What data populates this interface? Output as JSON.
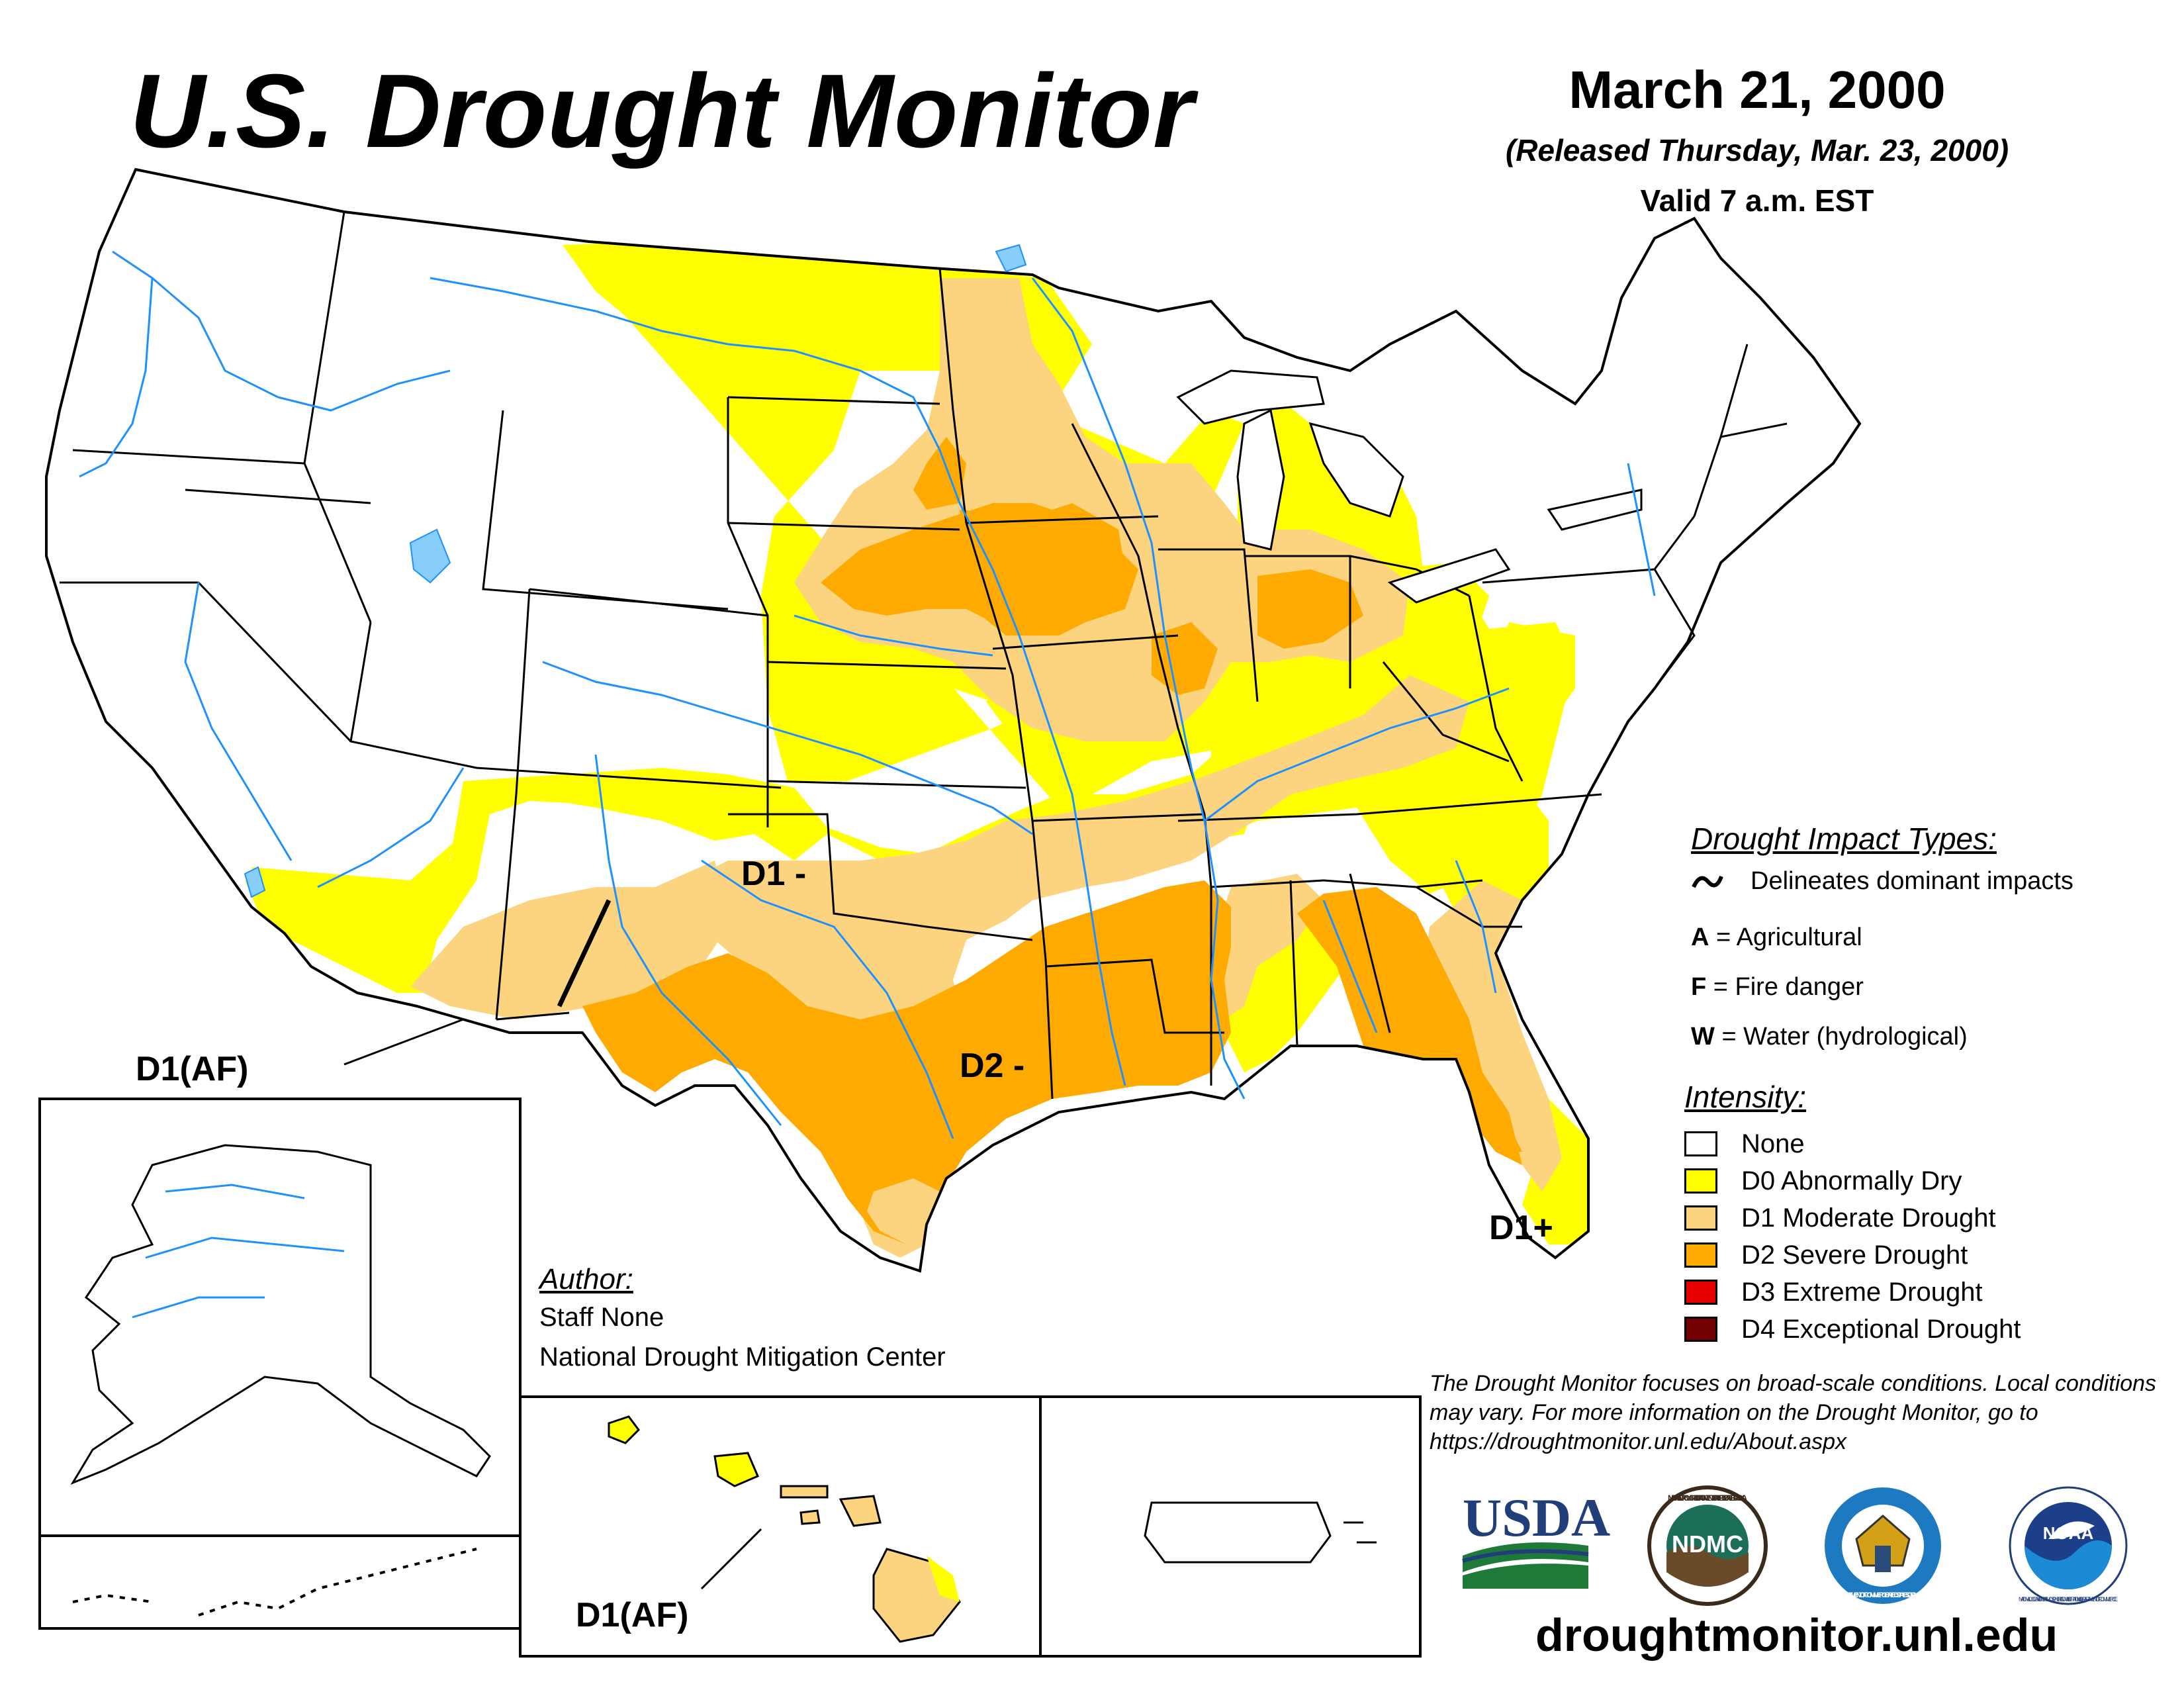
{
  "header": {
    "title": "U.S. Drought Monitor",
    "date": "March 21, 2000",
    "released": "(Released Thursday, Mar. 23, 2000)",
    "valid": "Valid 7 a.m. EST"
  },
  "map_labels": {
    "southwest": "D1(AF)",
    "hawaii": "D1(AF)",
    "oklahoma": "D1 -",
    "texas": "D2 -",
    "florida": "D1+"
  },
  "impact_types": {
    "heading": "Drought Impact Types:",
    "delineates": "Delineates dominant impacts",
    "items": [
      {
        "key": "A",
        "label": "= Agricultural"
      },
      {
        "key": "F",
        "label": "= Fire danger"
      },
      {
        "key": "W",
        "label": "= Water (hydrological)"
      }
    ]
  },
  "intensity": {
    "heading": "Intensity:",
    "items": [
      {
        "label": "None",
        "color": "#ffffff"
      },
      {
        "label": "D0 Abnormally Dry",
        "color": "#ffff00"
      },
      {
        "label": "D1 Moderate Drought",
        "color": "#fcd37f"
      },
      {
        "label": "D2 Severe Drought",
        "color": "#ffaa00"
      },
      {
        "label": "D3 Extreme Drought",
        "color": "#e60000"
      },
      {
        "label": "D4 Exceptional Drought",
        "color": "#730000"
      }
    ]
  },
  "author": {
    "heading": "Author:",
    "name": "Staff None",
    "org": "National Drought Mitigation Center"
  },
  "disclaimer": "The Drought Monitor focuses on broad-scale conditions. Local conditions may vary. For more information on the Drought Monitor, go to https://droughtmonitor.unl.edu/About.aspx",
  "logos": {
    "usda": "USDA",
    "ndmc": "NDMC",
    "ndmc_ring": "NATIONAL DROUGHT MITIGATION CENTER · UNIVERSITY OF NEBRASKA",
    "commerce_ring": "DEPARTMENT OF COMMERCE · UNITED STATES OF AMERICA",
    "noaa": "NOAA",
    "noaa_ring": "NATIONAL OCEANIC AND ATMOSPHERIC ADMINISTRATION · U.S. DEPARTMENT OF COMMERCE"
  },
  "website": "droughtmonitor.unl.edu"
}
